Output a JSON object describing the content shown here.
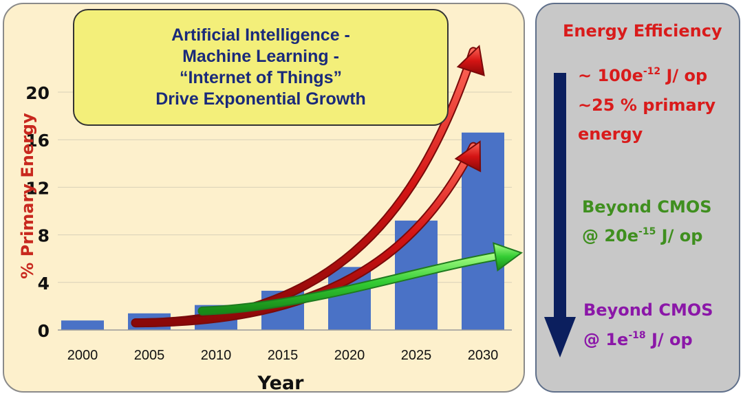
{
  "colors": {
    "bar": "#4a72c6",
    "red_arrow": "#d41414",
    "green_arrow": "#33cc33",
    "axis_label": "#c8281e",
    "title_text": "#1a2a7a",
    "title_box": "#f3ef7a",
    "left_panel": "#fdf0cc",
    "right_panel": "#c8c8c8",
    "down_arrow": "#0b1f5e"
  },
  "title_box": {
    "lines": [
      "Artificial Intelligence -",
      "Machine Learning -",
      "“Internet of Things”",
      "Drive Exponential Growth"
    ]
  },
  "chart_data": {
    "type": "bar",
    "categories": [
      "2000",
      "2005",
      "2010",
      "2015",
      "2020",
      "2025",
      "2030"
    ],
    "values": [
      0.8,
      1.4,
      2.1,
      3.3,
      5.3,
      9.2,
      16.6
    ],
    "xlabel": "Year",
    "ylabel": "% Primary Energy",
    "ylim": [
      0,
      20
    ],
    "yticks": [
      "0",
      "4",
      "8",
      "12",
      "16",
      "20"
    ],
    "grid": true,
    "trend_arrows": [
      {
        "color": "red",
        "from_year": "2005",
        "to_year": "2030",
        "end_value": 24
      },
      {
        "color": "red",
        "from_year": "2005",
        "to_year": "2030",
        "end_value": 16
      },
      {
        "color": "green",
        "from_year": "2010",
        "to_year": "2030",
        "end_value": 7
      }
    ]
  },
  "right_panel": {
    "heading": "Energy Efficiency",
    "level1": {
      "line1_pre": "~ 100e",
      "line1_sup": "-12",
      "line1_post": " J/ op",
      "line2": "~25 % primary",
      "line3": "energy"
    },
    "level2": {
      "line1": "Beyond CMOS",
      "line2_pre": "@ 20e",
      "line2_sup": "-15",
      "line2_post": " J/ op"
    },
    "level3": {
      "line1": "Beyond CMOS",
      "line2_pre": "@ 1e",
      "line2_sup": "-18",
      "line2_post": " J/ op"
    }
  }
}
